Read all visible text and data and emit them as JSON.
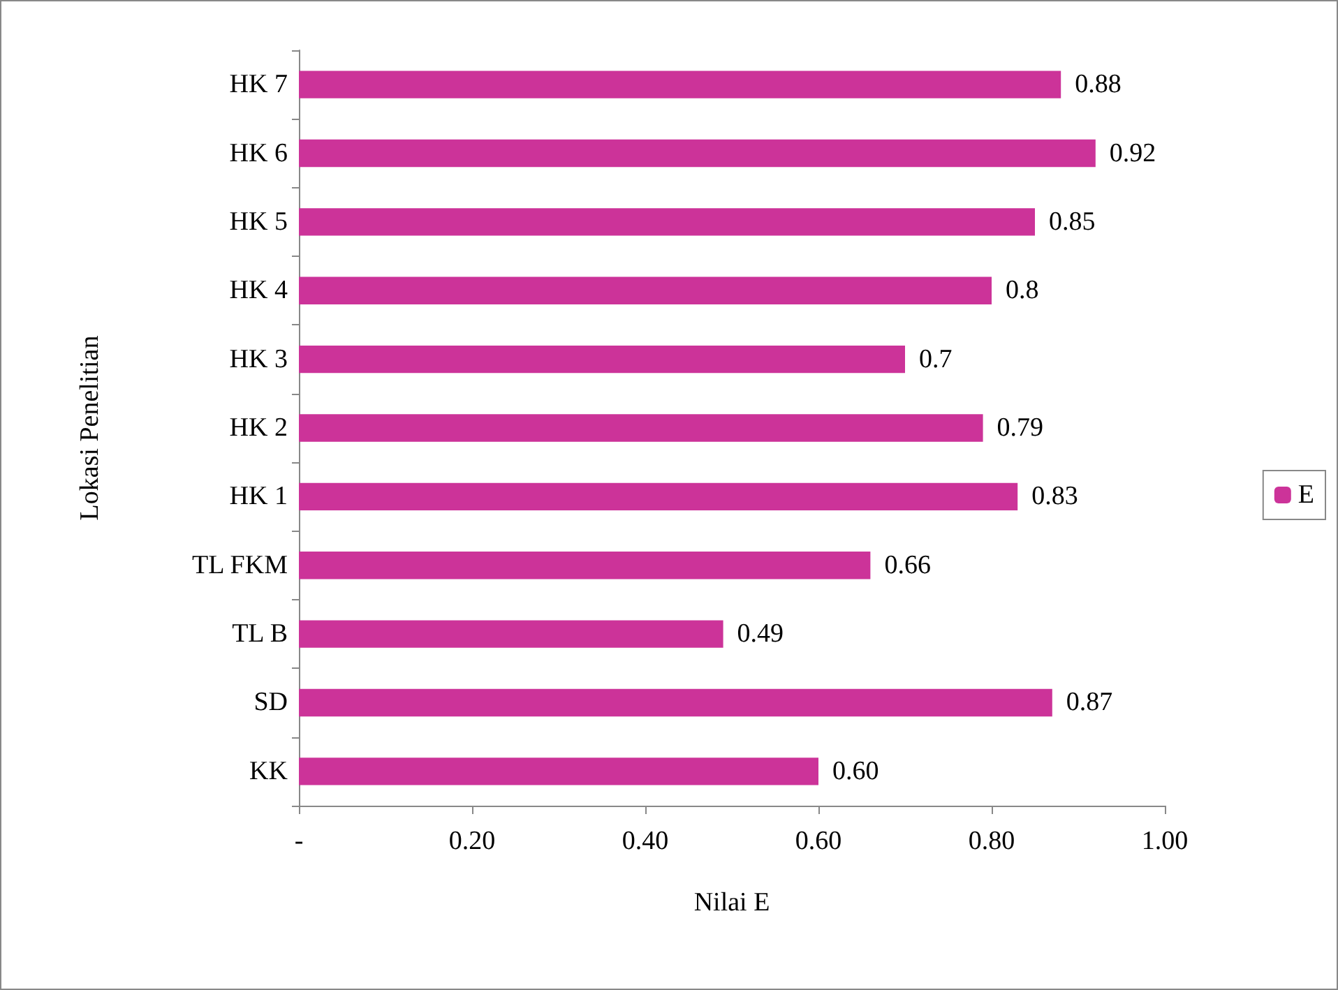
{
  "chart_data": {
    "type": "bar",
    "orientation": "horizontal",
    "xlabel": "Nilai E",
    "ylabel": "Lokasi Penelitian",
    "categories": [
      "HK 7",
      "HK 6",
      "HK 5",
      "HK 4",
      "HK 3",
      "HK 2",
      "HK 1",
      "TL FKM",
      "TL B",
      "SD",
      "KK"
    ],
    "series": [
      {
        "name": "E",
        "color": "#cc3399",
        "values": [
          0.88,
          0.92,
          0.85,
          0.8,
          0.7,
          0.79,
          0.83,
          0.66,
          0.49,
          0.87,
          0.6
        ],
        "value_labels": [
          "0.88",
          "0.92",
          "0.85",
          "0.8",
          "0.7",
          "0.79",
          "0.83",
          "0.66",
          "0.49",
          "0.87",
          "0.60"
        ]
      }
    ],
    "xlim": [
      0,
      1
    ],
    "xticks": [
      {
        "value": 0,
        "label": "-"
      },
      {
        "value": 0.2,
        "label": "0.20"
      },
      {
        "value": 0.4,
        "label": "0.40"
      },
      {
        "value": 0.6,
        "label": "0.60"
      },
      {
        "value": 0.8,
        "label": "0.80"
      },
      {
        "value": 1,
        "label": "1.00"
      }
    ],
    "legend": "right"
  }
}
